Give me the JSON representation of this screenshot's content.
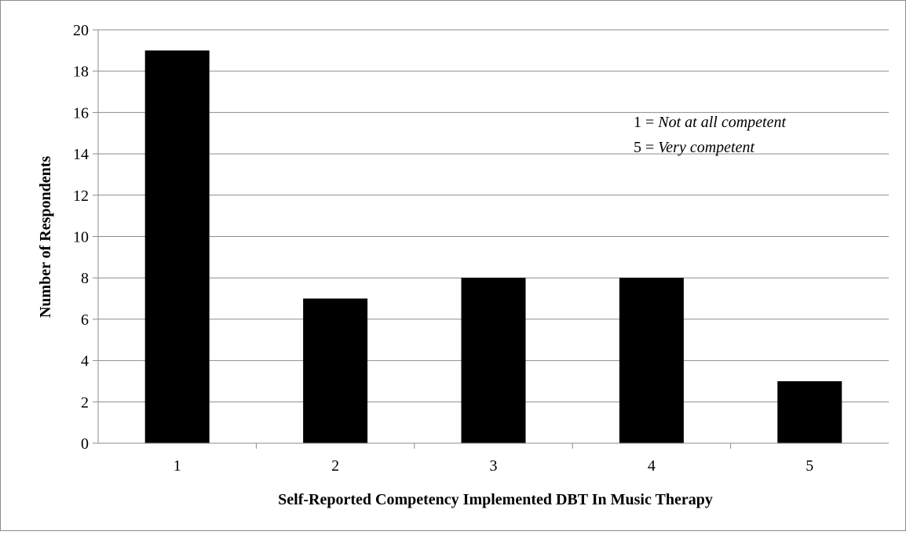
{
  "chart_data": {
    "type": "bar",
    "categories": [
      "1",
      "2",
      "3",
      "4",
      "5"
    ],
    "values": [
      19,
      7,
      8,
      8,
      3
    ],
    "title": "",
    "xlabel": "Self-Reported Competency Implemented DBT In Music Therapy",
    "ylabel": "Number of Respondents",
    "ylim": [
      0,
      20
    ],
    "ytick_step": 2,
    "grid": true,
    "bar_color": "#000000",
    "grid_color": "#8c8c8c",
    "legend": "none",
    "annotations": [
      {
        "prefix": "1 = ",
        "emph": "Not at all competent"
      },
      {
        "prefix": "5 = ",
        "emph": "Very competent"
      }
    ]
  }
}
